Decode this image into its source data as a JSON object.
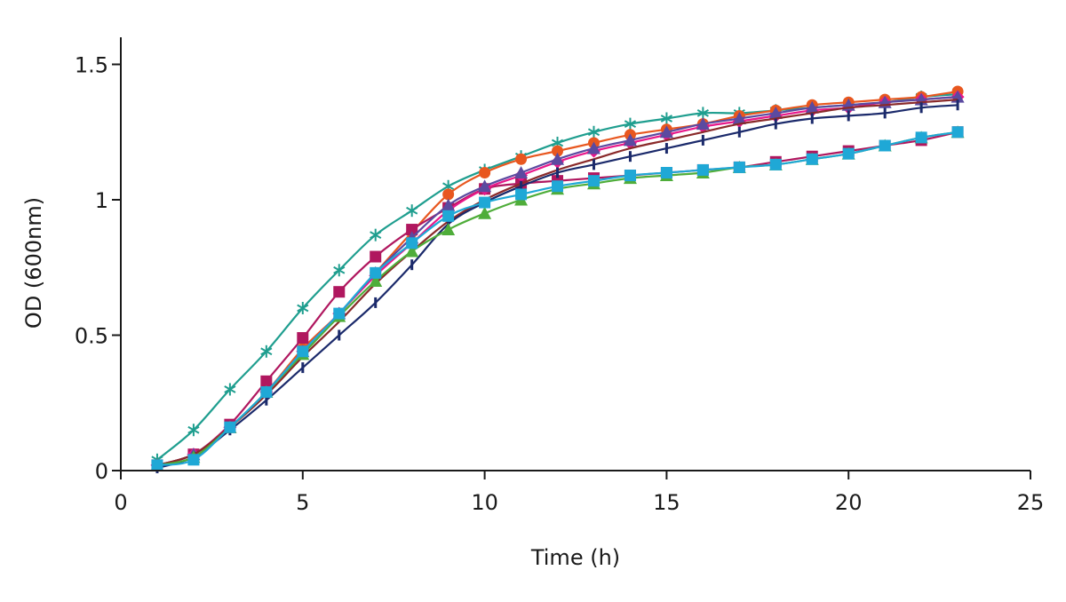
{
  "chart_data": {
    "type": "line",
    "title": "",
    "xlabel": "Time (h)",
    "ylabel": "OD (600nm)",
    "xlim": [
      0,
      25
    ],
    "ylim": [
      0,
      1.6
    ],
    "x_ticks": [
      0,
      5,
      10,
      15,
      20,
      25
    ],
    "x_tick_labels": [
      "0",
      "5",
      "10",
      "15",
      "20",
      "25"
    ],
    "y_ticks": [
      0,
      0.5,
      1,
      1.5
    ],
    "y_tick_labels": [
      "0",
      "0.5",
      "1",
      "1.5"
    ],
    "grid": false,
    "legend": "none",
    "x": [
      1,
      2,
      3,
      4,
      5,
      6,
      7,
      8,
      9,
      10,
      11,
      12,
      13,
      14,
      15,
      16,
      17,
      18,
      19,
      20,
      21,
      22,
      23
    ],
    "series": [
      {
        "color": "#1f9e8f",
        "marker": "asterisk",
        "values": [
          0.04,
          0.15,
          0.3,
          0.44,
          0.6,
          0.74,
          0.87,
          0.96,
          1.05,
          1.11,
          1.16,
          1.21,
          1.25,
          1.28,
          1.3,
          1.32,
          1.32,
          1.33,
          1.34,
          1.35,
          1.36,
          1.38,
          1.39
        ]
      },
      {
        "color": "#e8571f",
        "marker": "circle",
        "values": [
          0.02,
          0.06,
          0.16,
          0.29,
          0.45,
          0.58,
          0.73,
          0.88,
          1.02,
          1.1,
          1.15,
          1.18,
          1.21,
          1.24,
          1.26,
          1.28,
          1.31,
          1.33,
          1.35,
          1.36,
          1.37,
          1.38,
          1.4
        ]
      },
      {
        "color": "#b0175f",
        "marker": "square",
        "values": [
          0.02,
          0.06,
          0.17,
          0.33,
          0.49,
          0.66,
          0.79,
          0.89,
          0.97,
          1.04,
          1.06,
          1.07,
          1.08,
          1.09,
          1.1,
          1.11,
          1.12,
          1.14,
          1.16,
          1.18,
          1.2,
          1.22,
          1.25
        ]
      },
      {
        "color": "#e8188a",
        "marker": "diamond",
        "values": [
          0.02,
          0.06,
          0.16,
          0.29,
          0.44,
          0.58,
          0.72,
          0.84,
          0.96,
          1.04,
          1.09,
          1.14,
          1.18,
          1.21,
          1.24,
          1.27,
          1.29,
          1.31,
          1.33,
          1.34,
          1.36,
          1.37,
          1.38
        ]
      },
      {
        "color": "#5b4aa0",
        "marker": "triangle",
        "values": [
          0.02,
          0.06,
          0.16,
          0.29,
          0.44,
          0.58,
          0.73,
          0.86,
          0.98,
          1.05,
          1.1,
          1.15,
          1.19,
          1.22,
          1.25,
          1.28,
          1.3,
          1.32,
          1.34,
          1.35,
          1.36,
          1.37,
          1.38
        ]
      },
      {
        "color": "#8a2a2a",
        "marker": "none",
        "values": [
          0.02,
          0.06,
          0.16,
          0.28,
          0.42,
          0.55,
          0.69,
          0.81,
          0.92,
          1.0,
          1.06,
          1.11,
          1.15,
          1.19,
          1.22,
          1.25,
          1.28,
          1.3,
          1.32,
          1.34,
          1.35,
          1.36,
          1.37
        ]
      },
      {
        "color": "#1b2a6b",
        "marker": "dash",
        "values": [
          0.01,
          0.05,
          0.15,
          0.26,
          0.38,
          0.5,
          0.62,
          0.76,
          0.91,
          0.99,
          1.05,
          1.1,
          1.13,
          1.16,
          1.19,
          1.22,
          1.25,
          1.28,
          1.3,
          1.31,
          1.32,
          1.34,
          1.35
        ]
      },
      {
        "color": "#4fad3a",
        "marker": "triangle",
        "values": [
          0.02,
          0.05,
          0.16,
          0.29,
          0.43,
          0.57,
          0.7,
          0.81,
          0.89,
          0.95,
          1.0,
          1.04,
          1.06,
          1.08,
          1.09,
          1.1,
          1.12,
          1.13,
          1.15,
          1.17,
          1.2,
          1.23,
          1.25
        ]
      },
      {
        "color": "#1fa8d6",
        "marker": "square",
        "values": [
          0.02,
          0.04,
          0.16,
          0.29,
          0.44,
          0.58,
          0.73,
          0.84,
          0.94,
          0.99,
          1.02,
          1.05,
          1.07,
          1.09,
          1.1,
          1.11,
          1.12,
          1.13,
          1.15,
          1.17,
          1.2,
          1.23,
          1.25
        ]
      }
    ]
  }
}
